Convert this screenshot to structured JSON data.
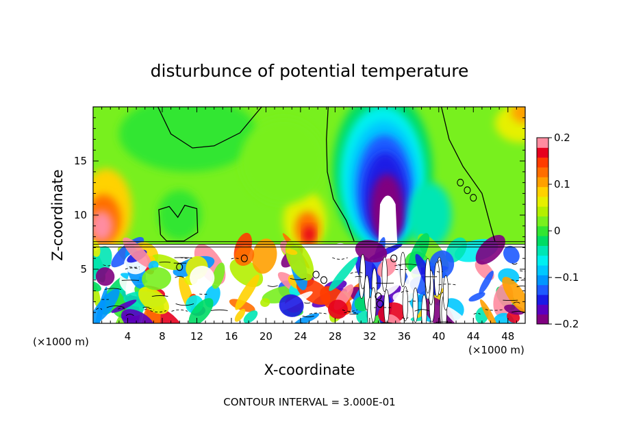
{
  "chart_data": {
    "type": "heatmap",
    "title": "disturbunce of potential temperature",
    "xlabel": "X-coordinate",
    "ylabel": "Z-coordinate",
    "x_unit": "(×1000 m)",
    "x_unit_right": "(×1000 m)",
    "xlim": [
      0,
      50
    ],
    "ylim": [
      0,
      20
    ],
    "x_ticks": [
      4,
      8,
      12,
      16,
      20,
      24,
      28,
      32,
      36,
      40,
      44,
      48
    ],
    "y_ticks": [
      5,
      10,
      15
    ],
    "footer": "CONTOUR INTERVAL = 3.000E-01",
    "colorbar": {
      "min": -0.2,
      "max": 0.2,
      "ticks": [
        0.2,
        0.1,
        0,
        -0.1,
        -0.2
      ],
      "tick_labels": [
        "0.2",
        "0.1",
        "0",
        "−0.1",
        "−0.2"
      ],
      "colors": [
        "#800080",
        "#5a00c0",
        "#1a1ae6",
        "#1e5aff",
        "#0096ff",
        "#00c8ff",
        "#00f0f0",
        "#00e6b4",
        "#00dc64",
        "#32e632",
        "#78f01e",
        "#b4f000",
        "#e6f000",
        "#ffd200",
        "#ffa000",
        "#ff6e00",
        "#ff3c00",
        "#e6001e",
        "#ff8ca0"
      ]
    },
    "features": [
      {
        "kind": "warm",
        "x": 1,
        "z": 10,
        "value": 0.18
      },
      {
        "kind": "warm",
        "x": 24.5,
        "z": 9.5,
        "value": 0.12
      },
      {
        "kind": "cold",
        "x": 33.5,
        "z": 10,
        "value": -0.2
      },
      {
        "kind": "cool",
        "x": 33.5,
        "z": 15,
        "value": -0.1
      },
      {
        "kind": "neutral",
        "x": 11.5,
        "z": 18,
        "value": 0.0
      }
    ]
  }
}
